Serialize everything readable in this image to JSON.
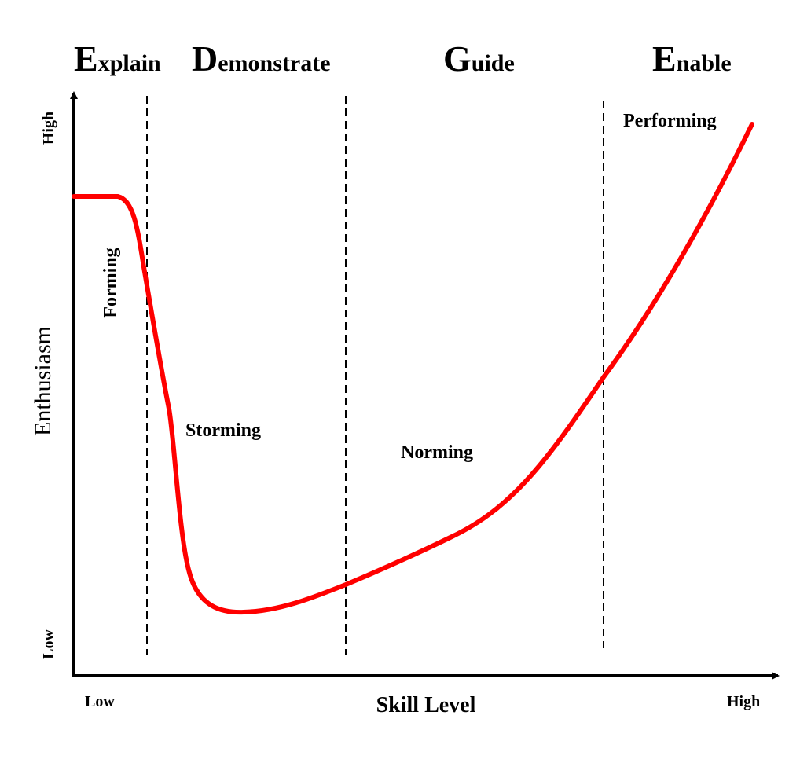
{
  "phases": [
    {
      "initial": "E",
      "rest": "xplain"
    },
    {
      "initial": "D",
      "rest": "emonstrate"
    },
    {
      "initial": "G",
      "rest": "uide"
    },
    {
      "initial": "E",
      "rest": "nable"
    }
  ],
  "stages": {
    "forming": "Forming",
    "storming": "Storming",
    "norming": "Norming",
    "performing": "Performing"
  },
  "axes": {
    "x_title": "Skill Level",
    "y_title": "Enthusiasm",
    "x_low": "Low",
    "x_high": "High",
    "y_low": "Low",
    "y_high": "High"
  },
  "colors": {
    "curve": "#ff0000",
    "axis": "#000000",
    "divider": "#000000"
  }
}
